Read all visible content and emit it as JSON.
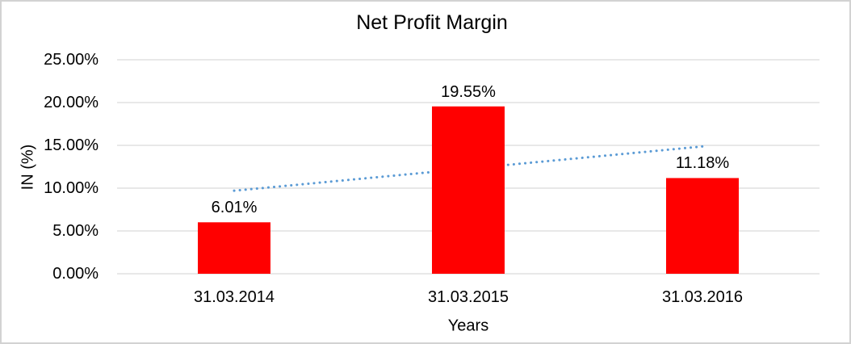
{
  "chart_data": {
    "type": "bar",
    "title": "Net Profit Margin",
    "categories": [
      "31.03.2014",
      "31.03.2015",
      "31.03.2016"
    ],
    "values": [
      6.01,
      19.55,
      11.18
    ],
    "data_labels": [
      "6.01%",
      "19.55%",
      "11.18%"
    ],
    "xlabel": "Years",
    "ylabel": "IN (%)",
    "ylim": [
      0,
      25
    ],
    "ytick_step": 5,
    "ytick_labels": [
      "0.00%",
      "5.00%",
      "10.00%",
      "15.00%",
      "20.00%",
      "25.00%"
    ],
    "grid": true,
    "legend_position": "none",
    "trendline": {
      "type": "linear",
      "style": "dotted",
      "start_value": 9.7,
      "end_value": 14.87
    },
    "colors": {
      "bar": "#FF0000",
      "trendline": "#5B9BD5",
      "gridline": "#D9D9D9",
      "text": "#000000",
      "background": "#FFFFFF",
      "frame_border": "#D2D2D2"
    }
  }
}
